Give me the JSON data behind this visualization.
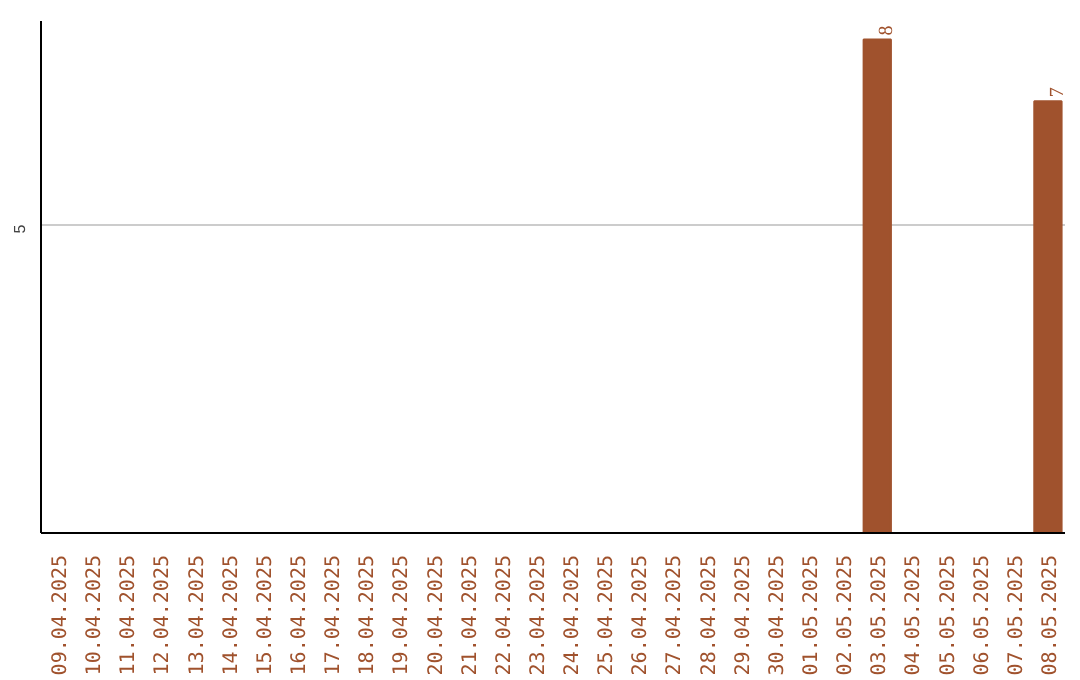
{
  "chart_data": {
    "type": "bar",
    "categories": [
      "09.04.2025",
      "10.04.2025",
      "11.04.2025",
      "12.04.2025",
      "13.04.2025",
      "14.04.2025",
      "15.04.2025",
      "16.04.2025",
      "17.04.2025",
      "18.04.2025",
      "19.04.2025",
      "20.04.2025",
      "21.04.2025",
      "22.04.2025",
      "23.04.2025",
      "24.04.2025",
      "25.04.2025",
      "26.04.2025",
      "27.04.2025",
      "28.04.2025",
      "29.04.2025",
      "30.04.2025",
      "01.05.2025",
      "02.05.2025",
      "03.05.2025",
      "04.05.2025",
      "05.05.2025",
      "06.05.2025",
      "07.05.2025",
      "08.05.2025"
    ],
    "values": [
      null,
      null,
      null,
      null,
      null,
      null,
      null,
      null,
      null,
      null,
      null,
      null,
      null,
      null,
      null,
      null,
      null,
      null,
      null,
      null,
      null,
      null,
      null,
      null,
      8,
      null,
      null,
      null,
      null,
      7
    ],
    "color": "#a0522d",
    "ylim": [
      0,
      8.3
    ],
    "yticks": [
      5
    ],
    "grid": "y",
    "data_labels": true
  }
}
